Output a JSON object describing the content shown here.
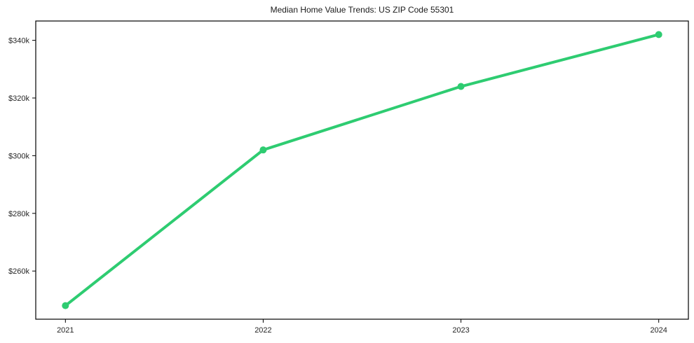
{
  "chart_data": {
    "type": "line",
    "title": "Median Home Value Trends: US ZIP Code 55301",
    "series": [
      {
        "name": "Median Home Value",
        "x": [
          2021,
          2022,
          2023,
          2024
        ],
        "values": [
          248000,
          302000,
          324000,
          342000
        ]
      }
    ],
    "x_ticks": [
      {
        "value": 2021,
        "label": "2021"
      },
      {
        "value": 2022,
        "label": "2022"
      },
      {
        "value": 2023,
        "label": "2023"
      },
      {
        "value": 2024,
        "label": "2024"
      }
    ],
    "y_ticks": [
      {
        "value": 260000,
        "label": "$260k"
      },
      {
        "value": 280000,
        "label": "$280k"
      },
      {
        "value": 300000,
        "label": "$300k"
      },
      {
        "value": 320000,
        "label": "$320k"
      },
      {
        "value": 340000,
        "label": "$340k"
      }
    ],
    "xlabel": "",
    "ylabel": "",
    "xlim": [
      2020.85,
      2024.15
    ],
    "ylim": [
      243300,
      346700
    ],
    "grid": false,
    "legend_position": "none",
    "colors": {
      "line": "#2ecc71",
      "marker": "#2ecc71",
      "axis": "#000000",
      "tick_text": "#262626",
      "title_text": "#1a1a1a",
      "background": "#ffffff"
    }
  }
}
